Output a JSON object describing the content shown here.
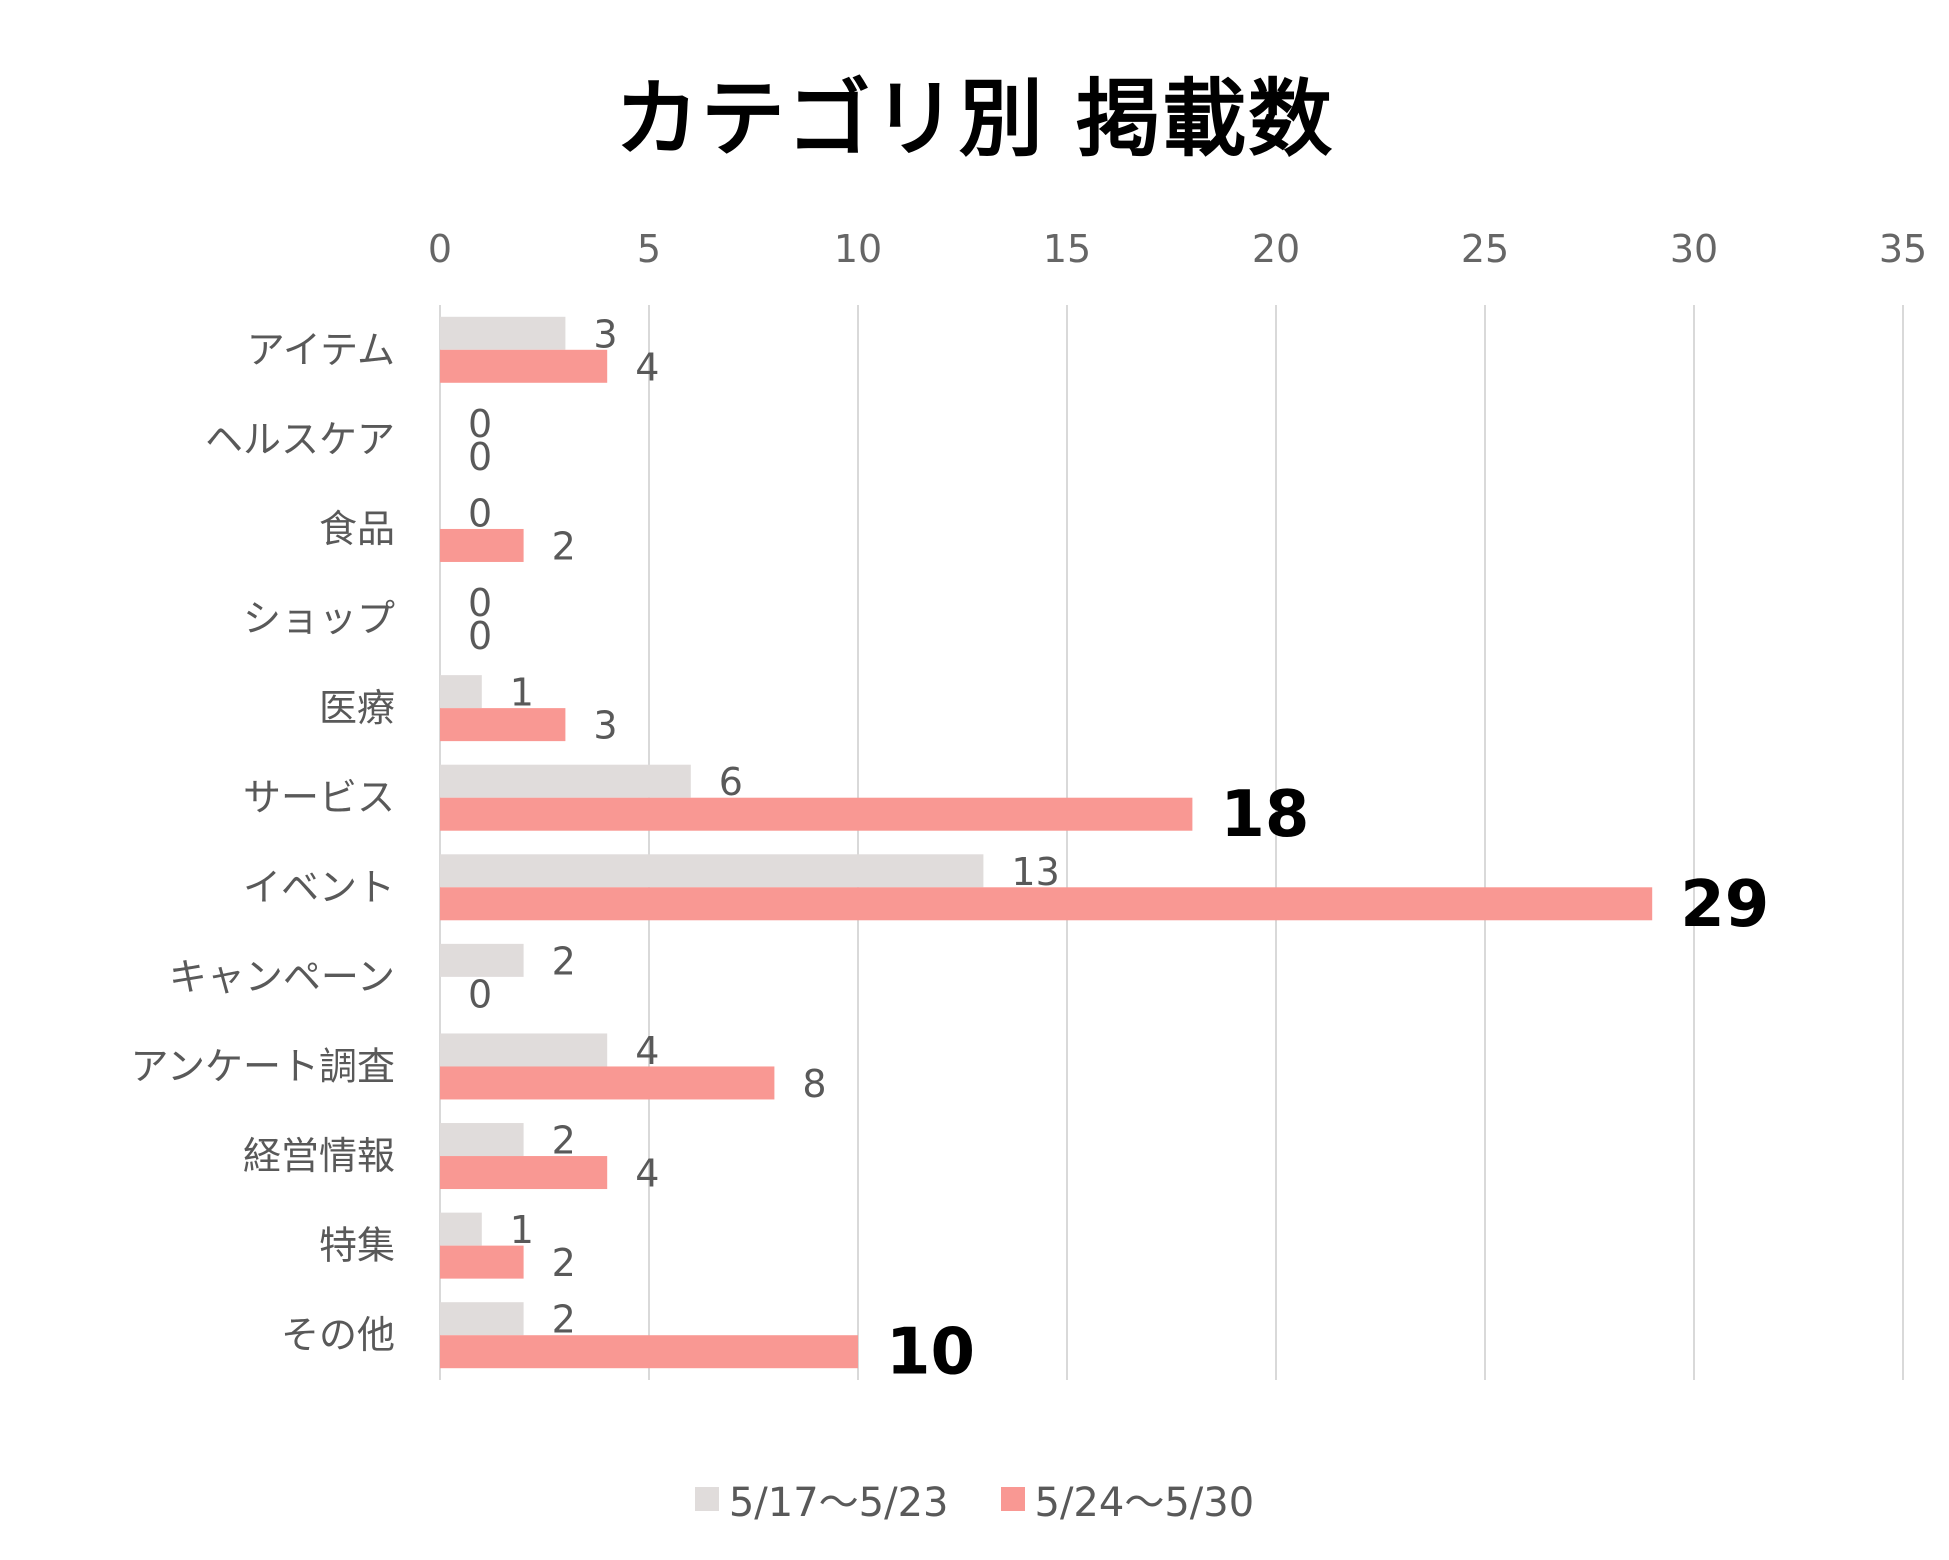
{
  "chart_data": {
    "type": "bar",
    "orientation": "horizontal",
    "title": "カテゴリ別 掲載数",
    "categories": [
      "アイテム",
      "ヘルスケア",
      "食品",
      "ショップ",
      "医療",
      "サービス",
      "イベント",
      "キャンペーン",
      "アンケート調査",
      "経営情報",
      "特集",
      "その他"
    ],
    "series": [
      {
        "name": "5/17〜5/23",
        "color": "#E0DCDB",
        "values": [
          3,
          0,
          0,
          0,
          1,
          6,
          13,
          2,
          4,
          2,
          1,
          2
        ]
      },
      {
        "name": "5/24〜5/30",
        "color": "#F99893",
        "values": [
          4,
          0,
          2,
          0,
          3,
          18,
          29,
          0,
          8,
          4,
          2,
          10
        ]
      }
    ],
    "emphasized_labels": [
      [
        5,
        1
      ],
      [
        6,
        1
      ],
      [
        11,
        1
      ]
    ],
    "xlim": [
      0,
      35
    ],
    "xticks": [
      0,
      5,
      10,
      15,
      20,
      25,
      30,
      35
    ],
    "grid": true,
    "axis_position": "top",
    "legend_position": "bottom"
  }
}
